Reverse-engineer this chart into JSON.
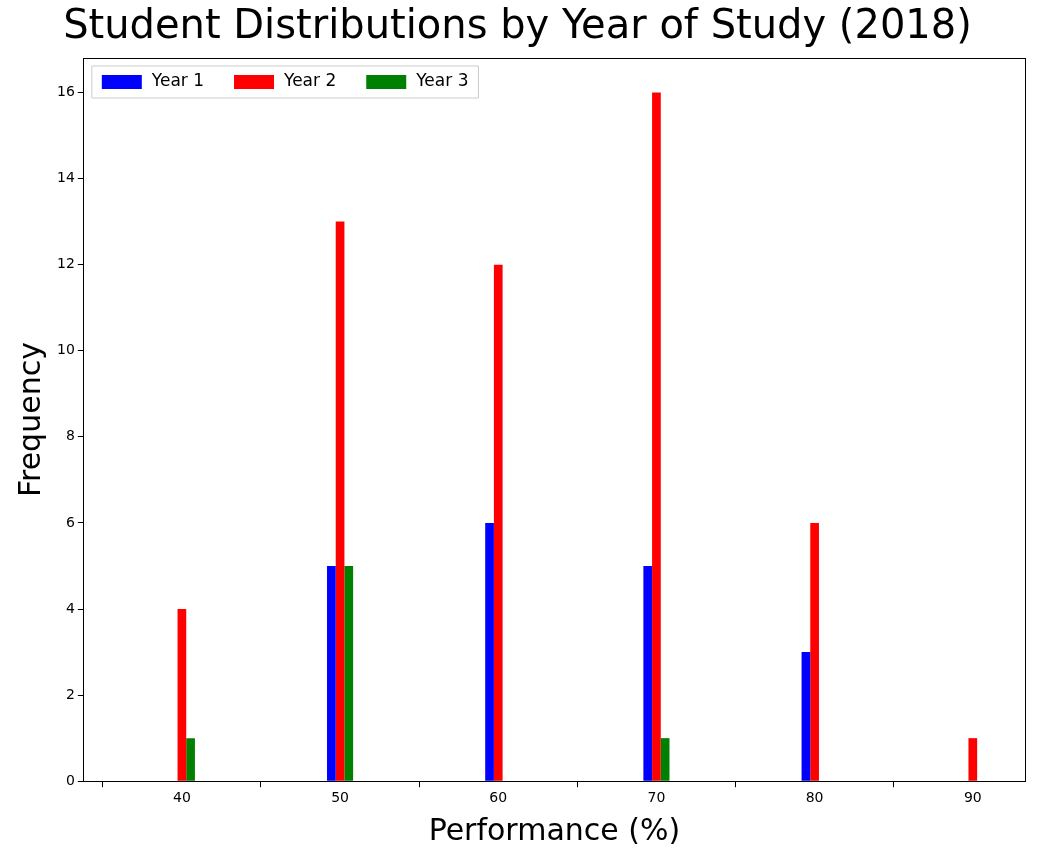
{
  "chart_data": {
    "type": "bar",
    "title": "Student Distributions by Year of Study (2018)",
    "xlabel": "Performance (%)",
    "ylabel": "Frequency",
    "x": [
      40,
      50,
      60,
      70,
      80,
      90
    ],
    "series": [
      {
        "name": "Year 1",
        "color": "#0000ff",
        "values": [
          0,
          5,
          6,
          5,
          3,
          0
        ]
      },
      {
        "name": "Year 2",
        "color": "#ff0000",
        "values": [
          4,
          13,
          12,
          16,
          6,
          1
        ]
      },
      {
        "name": "Year 3",
        "color": "#008000",
        "values": [
          1,
          5,
          0,
          1,
          0,
          0
        ]
      }
    ],
    "xlim": [
      33.8,
      93.3
    ],
    "xticks": [
      40,
      50,
      60,
      70,
      80,
      90
    ],
    "ylim": [
      0,
      16.8
    ],
    "yticks": [
      0,
      2,
      4,
      6,
      8,
      10,
      12,
      14,
      16
    ],
    "grid": false,
    "legend": "top left"
  }
}
